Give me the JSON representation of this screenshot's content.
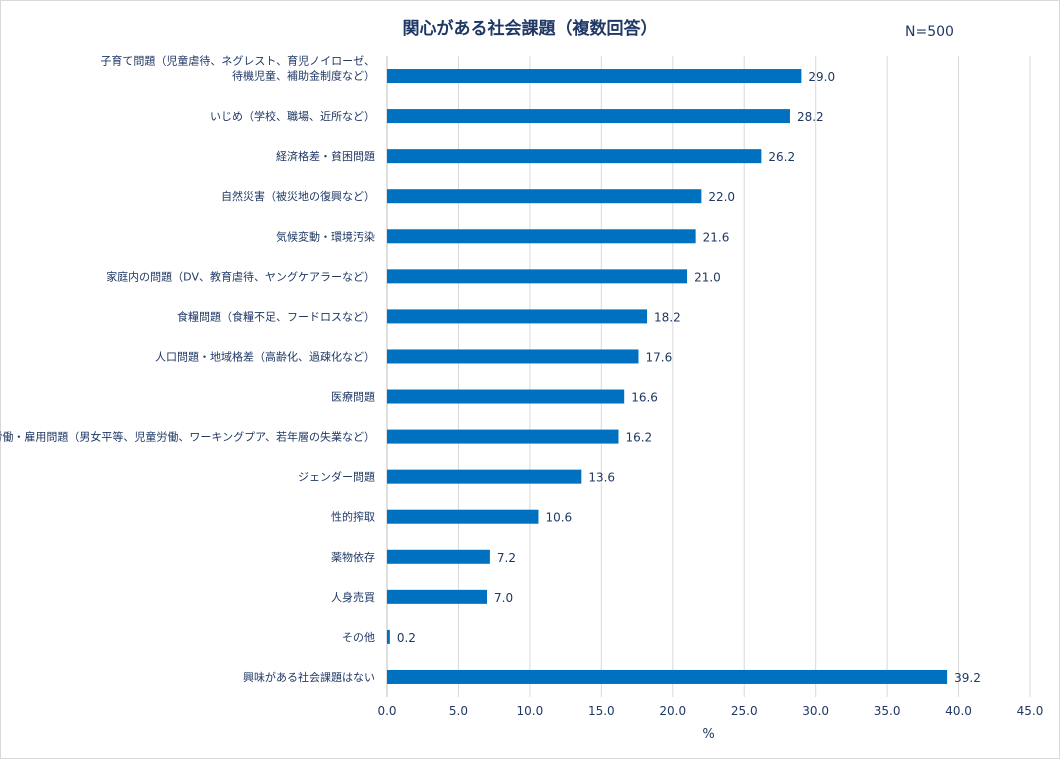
{
  "chart_data": {
    "type": "bar",
    "orientation": "horizontal",
    "title": "関心がある社会課題（複数回答）",
    "annotation": "N=500",
    "xlabel": "%",
    "ylabel": "",
    "xlim": [
      0,
      45
    ],
    "xticks": [
      "0.0",
      "5.0",
      "10.0",
      "15.0",
      "20.0",
      "25.0",
      "30.0",
      "35.0",
      "40.0",
      "45.0"
    ],
    "grid": true,
    "bar_color": "#0070c0",
    "categories": [
      [
        "子育て問題（児童虐待、ネグレスト、育児ノイローゼ、",
        "待機児童、補助金制度など）"
      ],
      [
        "いじめ（学校、職場、近所など）"
      ],
      [
        "経済格差・貧困問題"
      ],
      [
        "自然災害（被災地の復興など）"
      ],
      [
        "気候変動・環境汚染"
      ],
      [
        "家庭内の問題（DV、教育虐待、ヤングケアラーなど）"
      ],
      [
        "食糧問題（食糧不足、フードロスなど）"
      ],
      [
        "人口問題・地域格差（高齢化、過疎化など）"
      ],
      [
        "医療問題"
      ],
      [
        "労働・雇用問題（男女平等、児童労働、ワーキングプア、若年層の失業など）"
      ],
      [
        "ジェンダー問題"
      ],
      [
        "性的搾取"
      ],
      [
        "薬物依存"
      ],
      [
        "人身売買"
      ],
      [
        "その他"
      ],
      [
        "興味がある社会課題はない"
      ]
    ],
    "values": [
      29.0,
      28.2,
      26.2,
      22.0,
      21.6,
      21.0,
      18.2,
      17.6,
      16.6,
      16.2,
      13.6,
      10.6,
      7.2,
      7.0,
      0.2,
      39.2
    ],
    "value_labels": [
      "29.0",
      "28.2",
      "26.2",
      "22.0",
      "21.6",
      "21.0",
      "18.2",
      "17.6",
      "16.6",
      "16.2",
      "13.6",
      "10.6",
      "7.2",
      "7.0",
      "0.2",
      "39.2"
    ]
  }
}
